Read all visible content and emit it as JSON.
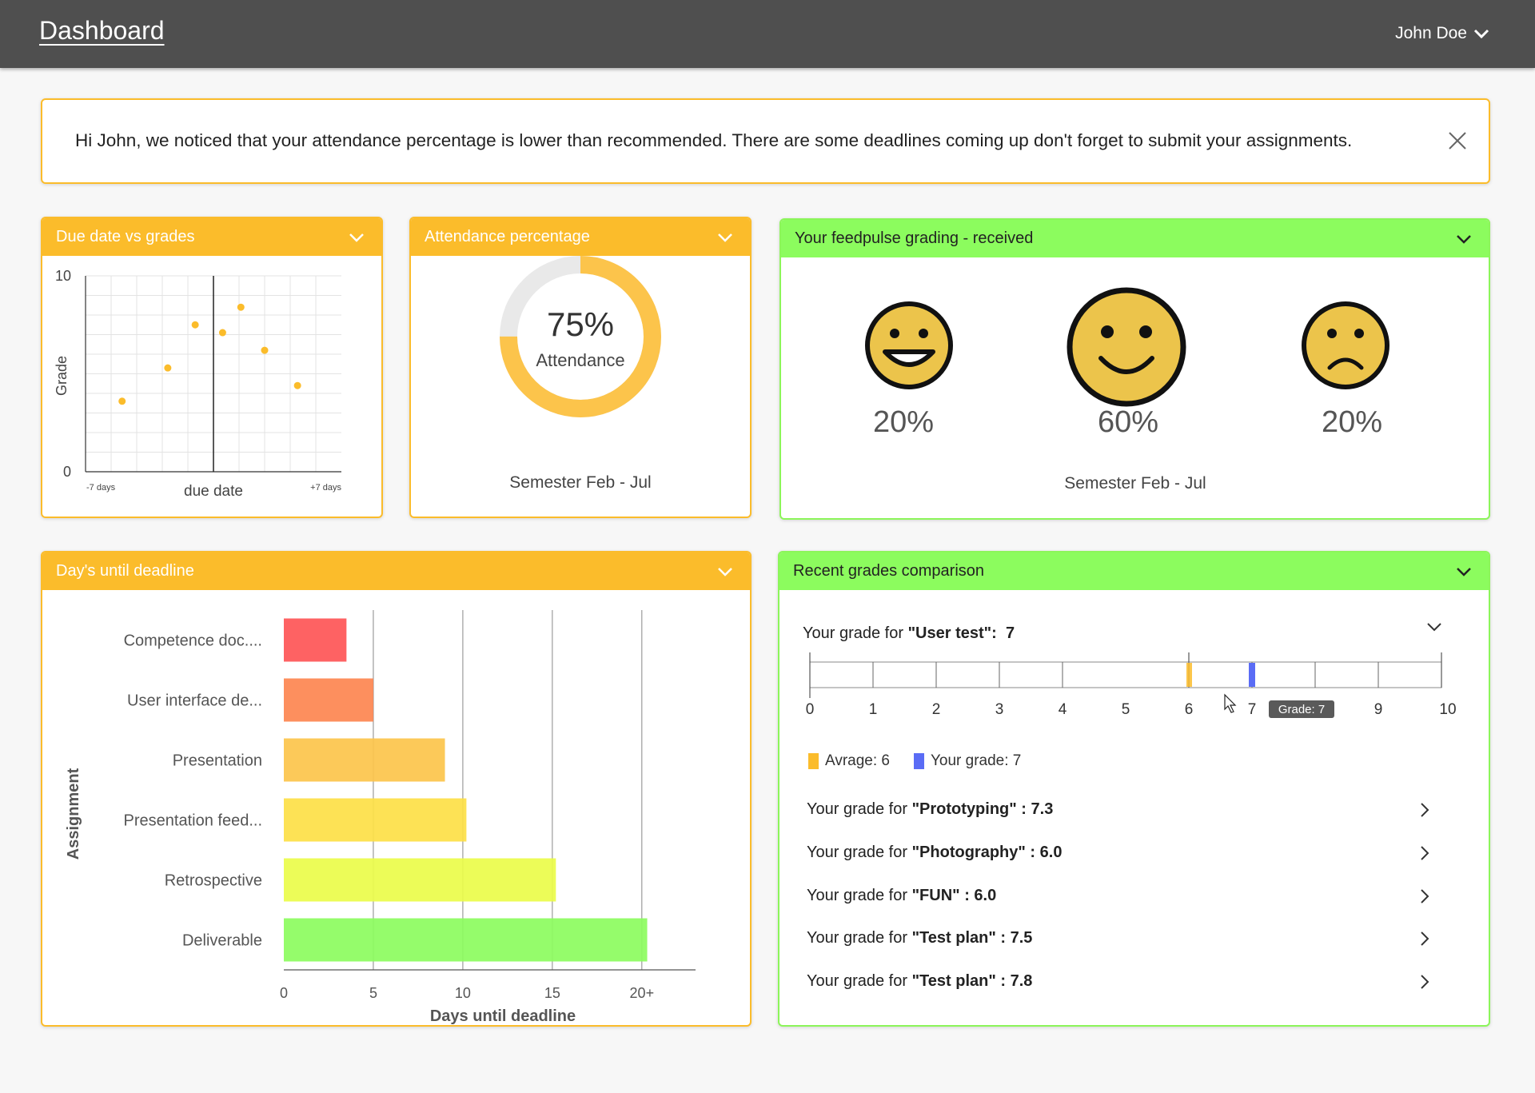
{
  "header": {
    "title": "Dashboard",
    "user_name": "John Doe"
  },
  "alert": {
    "message": "Hi John, we noticed that your attendance percentage is lower than recommended. There are some deadlines coming up don't forget to submit your assignments."
  },
  "cards": {
    "due_vs_grades": {
      "title": "Due date vs grades",
      "ylabel": "Grade",
      "xlabel": "due date",
      "y_max_label": "10",
      "y_min_label": "0",
      "x_min_label": "-7 days",
      "x_max_label": "+7 days"
    },
    "attendance": {
      "title": "Attendance percentage",
      "value": 75,
      "value_label": "75%",
      "caption": "Attendance",
      "semester": "Semester Feb - Jul"
    },
    "feedpulse": {
      "title": "Your feedpulse grading - received",
      "happy_pct": "20%",
      "neutral_pct": "60%",
      "sad_pct": "20%",
      "semester": "Semester Feb - Jul"
    },
    "deadlines": {
      "title": "Day's until deadline",
      "ylabel": "Assignment",
      "xlabel": "Days until deadline"
    },
    "recent": {
      "title": "Recent grades comparison",
      "current_prefix": "Your grade for ",
      "current_name": "\"User test\":",
      "current_value": "7",
      "tooltip": "Grade: 7",
      "legend_avg": "Avrage: 6",
      "legend_yours": "Your grade: 7",
      "average": 6,
      "yours": 7,
      "ticks": [
        "0",
        "1",
        "2",
        "3",
        "4",
        "5",
        "6",
        "7",
        "8",
        "9",
        "10"
      ],
      "rows": [
        {
          "prefix": "Your grade for ",
          "name": "\"Prototyping\" : 7.3"
        },
        {
          "prefix": "Your grade for ",
          "name": "\"Photography\" : 6.0"
        },
        {
          "prefix": "Your grade for ",
          "name": "\"FUN\" : 6.0"
        },
        {
          "prefix": "Your grade for ",
          "name": "\"Test plan\" : 7.5"
        },
        {
          "prefix": "Your grade for ",
          "name": "\"Test plan\" : 7.8"
        }
      ]
    }
  },
  "chart_data": [
    {
      "type": "scatter",
      "title": "Due date vs grades",
      "xlabel": "due date",
      "ylabel": "Grade",
      "xlim": [
        -7,
        7
      ],
      "ylim": [
        0,
        10
      ],
      "x_tick_labels": [
        "-7 days",
        "+7 days"
      ],
      "y_tick_labels": [
        "0",
        "10"
      ],
      "grid": true,
      "points": [
        {
          "x": -5.0,
          "y": 3.6
        },
        {
          "x": -2.5,
          "y": 5.3
        },
        {
          "x": -1.0,
          "y": 7.5
        },
        {
          "x": 0.5,
          "y": 7.1
        },
        {
          "x": 1.5,
          "y": 8.4
        },
        {
          "x": 2.8,
          "y": 6.2
        },
        {
          "x": 4.6,
          "y": 4.4
        }
      ],
      "color": "#fbbc2b"
    },
    {
      "type": "bar",
      "orientation": "horizontal",
      "title": "Day's until deadline",
      "xlabel": "Days until deadline",
      "ylabel": "Assignment",
      "xlim": [
        0,
        23
      ],
      "x_tick_labels": [
        "0",
        "5",
        "10",
        "15",
        "20+"
      ],
      "categories": [
        "Competence doc....",
        "User interface de...",
        "Presentation",
        "Presentation feed...",
        "Retrospective",
        "Deliverable"
      ],
      "values": [
        3.5,
        5,
        9,
        10.2,
        15.2,
        20.3
      ],
      "colors": [
        "#fe5556",
        "#fd8650",
        "#fcc44b",
        "#fddf46",
        "#eafc4a",
        "#8cfc5e"
      ]
    }
  ]
}
